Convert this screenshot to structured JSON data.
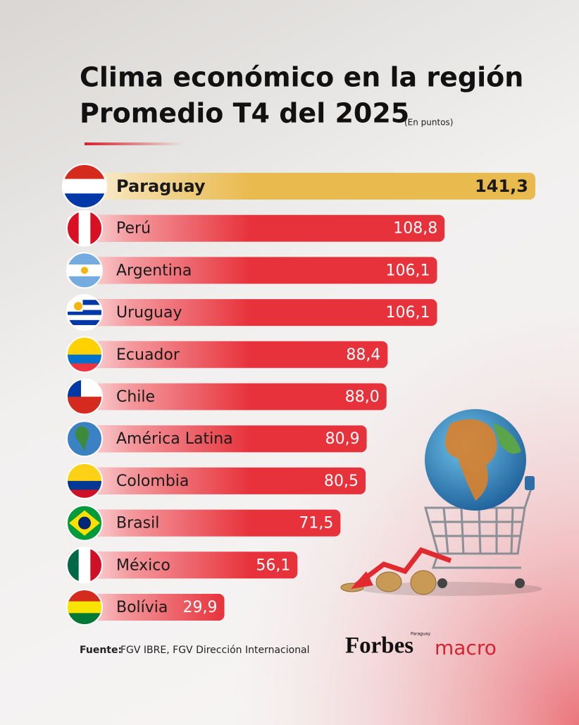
{
  "chart_data": {
    "type": "bar",
    "orientation": "horizontal",
    "title": "Clima económico en la región",
    "subtitle": "Promedio T4 del 2025",
    "unit": "(En puntos)",
    "categories": [
      "Paraguay",
      "Perú",
      "Argentina",
      "Uruguay",
      "Ecuador",
      "Chile",
      "América Latina",
      "Colombia",
      "Brasil",
      "México",
      "Bolívia"
    ],
    "values": [
      141.3,
      108.8,
      106.1,
      106.1,
      88.4,
      88.0,
      80.9,
      80.5,
      71.5,
      56.1,
      29.9
    ],
    "value_labels": [
      "141,3",
      "108,8",
      "106,1",
      "106,1",
      "88,4",
      "88,0",
      "80,9",
      "80,5",
      "71,5",
      "56,1",
      "29,9"
    ],
    "colors": [
      "#e9bb4f",
      "#e8323b",
      "#e8323b",
      "#e8323b",
      "#e8323b",
      "#e8323b",
      "#e8323b",
      "#e8323b",
      "#e8323b",
      "#e8323b",
      "#e8323b"
    ],
    "source_label": "Fuente:",
    "source": "FGV IBRE, FGV Dirección Internacional",
    "brand": "Forbes",
    "brand_region": "Paraguay",
    "brand_section": "macro"
  }
}
